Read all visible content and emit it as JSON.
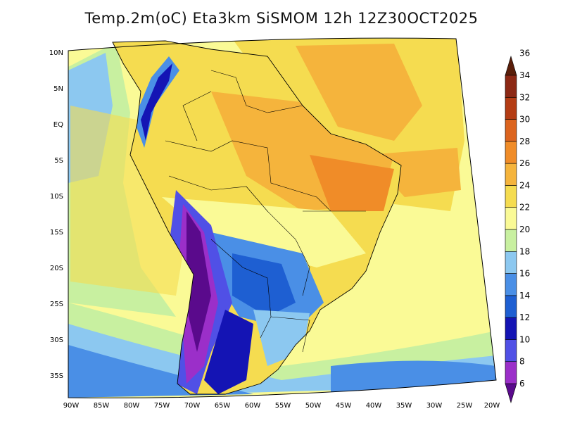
{
  "title": "Temp.2m(oC) Eta3km SiSMOM 12h 12Z30OCT2025",
  "lat_labels": [
    "10N",
    "5N",
    "EQ",
    "5S",
    "10S",
    "15S",
    "20S",
    "25S",
    "30S",
    "35S"
  ],
  "lon_labels": [
    "90W",
    "85W",
    "80W",
    "75W",
    "70W",
    "65W",
    "60W",
    "55W",
    "50W",
    "45W",
    "40W",
    "35W",
    "30W",
    "25W",
    "20W"
  ],
  "colorbar": {
    "labels": [
      "6",
      "8",
      "10",
      "12",
      "14",
      "16",
      "18",
      "20",
      "22",
      "24",
      "26",
      "28",
      "30",
      "32",
      "34",
      "36"
    ],
    "colors": [
      "#5a0a8c",
      "#9b2fc9",
      "#5050e6",
      "#1414b4",
      "#1e5fd2",
      "#4a8fe6",
      "#8cc8f0",
      "#c8f0a0",
      "#fafa96",
      "#f5dc50",
      "#f5b43c",
      "#f08c28",
      "#dc641e",
      "#b43c14",
      "#8c2814",
      "#5a1e0a"
    ]
  },
  "chart_data": {
    "type": "heatmap",
    "title": "Temp.2m(oC) Eta3km SiSMOM 12h 12Z30OCT2025",
    "variable": "2 m temperature",
    "units": "oC",
    "model": "Eta3km SiSMOM",
    "forecast": "12h",
    "valid_time": "12Z30OCT2025",
    "lon_range": [
      -90,
      -20
    ],
    "lat_range": [
      -37,
      11
    ],
    "color_levels": [
      6,
      8,
      10,
      12,
      14,
      16,
      18,
      20,
      22,
      24,
      26,
      28,
      30,
      32,
      34,
      36
    ]
  }
}
